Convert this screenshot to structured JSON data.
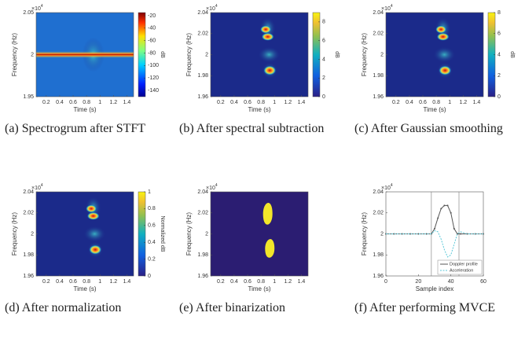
{
  "figure": {
    "panels": [
      {
        "caption": "(a) Spectrogrum after STFT",
        "xlabel": "Time (s)",
        "ylabel": "Frequency (Hz)",
        "y_exponent_base": "×10",
        "y_exponent_power": "4",
        "xlim": [
          0.05,
          1.5
        ],
        "xticks": [
          0.2,
          0.4,
          0.6,
          0.8,
          1,
          1.2,
          1.4
        ],
        "ylim": [
          1.95,
          2.05
        ],
        "yticks": [
          1.95,
          2,
          2.05
        ],
        "colorbar": {
          "label": "dB",
          "clim": [
            -150,
            -15
          ],
          "ticks": [
            -140,
            -120,
            -100,
            -80,
            -60,
            -40,
            -20
          ]
        }
      },
      {
        "caption": "(b) After spectral subtraction",
        "xlabel": "Time (s)",
        "ylabel": "Frequency (Hz)",
        "y_exponent_base": "×10",
        "y_exponent_power": "4",
        "xlim": [
          0.05,
          1.5
        ],
        "xticks": [
          0.2,
          0.4,
          0.6,
          0.8,
          1,
          1.2,
          1.4
        ],
        "ylim": [
          1.96,
          2.04
        ],
        "yticks": [
          1.96,
          1.98,
          2,
          2.02,
          2.04
        ],
        "colorbar": {
          "label": "dB",
          "clim": [
            0,
            9
          ],
          "ticks": [
            0,
            2,
            4,
            6,
            8
          ]
        }
      },
      {
        "caption": "(c) After Gaussian smoothing",
        "xlabel": "Time (s)",
        "ylabel": "Frequency (Hz)",
        "y_exponent_base": "×10",
        "y_exponent_power": "4",
        "xlim": [
          0.05,
          1.5
        ],
        "xticks": [
          0.2,
          0.4,
          0.6,
          0.8,
          1,
          1.2,
          1.4
        ],
        "ylim": [
          1.96,
          2.04
        ],
        "yticks": [
          1.96,
          1.98,
          2,
          2.02,
          2.04
        ],
        "colorbar": {
          "label": "dB",
          "clim": [
            0,
            8
          ],
          "ticks": [
            0,
            2,
            4,
            6,
            8
          ]
        }
      },
      {
        "caption": "(d) After normalization",
        "xlabel": "Time (s)",
        "ylabel": "Frequency (Hz)",
        "y_exponent_base": "×10",
        "y_exponent_power": "4",
        "xlim": [
          0.05,
          1.5
        ],
        "xticks": [
          0.2,
          0.4,
          0.6,
          0.8,
          1,
          1.2,
          1.4
        ],
        "ylim": [
          1.96,
          2.04
        ],
        "yticks": [
          1.96,
          1.98,
          2,
          2.02,
          2.04
        ],
        "colorbar": {
          "label": "Normalized dB",
          "clim": [
            0,
            1
          ],
          "ticks": [
            0,
            0.2,
            0.4,
            0.6,
            0.8,
            1
          ]
        }
      },
      {
        "caption": "(e) After binarization",
        "xlabel": "Time (s)",
        "ylabel": "Frequency (Hz)",
        "y_exponent_base": "×10",
        "y_exponent_power": "4",
        "xlim": [
          0.05,
          1.5
        ],
        "xticks": [
          0.2,
          0.4,
          0.6,
          0.8,
          1,
          1.2,
          1.4
        ],
        "ylim": [
          1.96,
          2.04
        ],
        "yticks": [
          1.96,
          1.98,
          2,
          2.02,
          2.04
        ]
      },
      {
        "caption": "(f) After performing MVCE",
        "type": "line",
        "xlabel": "Sample index",
        "ylabel": "Frequency (Hz)",
        "y_exponent_base": "×10",
        "y_exponent_power": "4",
        "xlim": [
          0,
          60
        ],
        "xticks": [
          0,
          20,
          40,
          60
        ],
        "ylim": [
          1.96,
          2.04
        ],
        "yticks": [
          1.96,
          1.98,
          2,
          2.02,
          2.04
        ],
        "x": [
          0,
          5,
          10,
          15,
          20,
          25,
          28,
          30,
          32,
          34,
          36,
          38,
          40,
          42,
          44,
          46,
          50,
          55,
          60
        ],
        "series": [
          {
            "name": "Doppler profile",
            "color": "#555555",
            "values": [
              2,
              2,
              2,
              2,
              2,
              2,
              2,
              2.005,
              2.015,
              2.024,
              2.027,
              2.027,
              2.02,
              2.005,
              2,
              2,
              2,
              2,
              2
            ]
          },
          {
            "name": "Acceleration",
            "color": "#5bc8d8",
            "values": [
              2,
              2,
              2,
              2,
              2,
              2,
              2,
              2.003,
              2.002,
              1.995,
              1.985,
              1.978,
              1.98,
              1.99,
              2,
              2.002,
              2,
              2,
              2
            ]
          }
        ],
        "vlines": [
          28,
          45
        ]
      }
    ]
  }
}
